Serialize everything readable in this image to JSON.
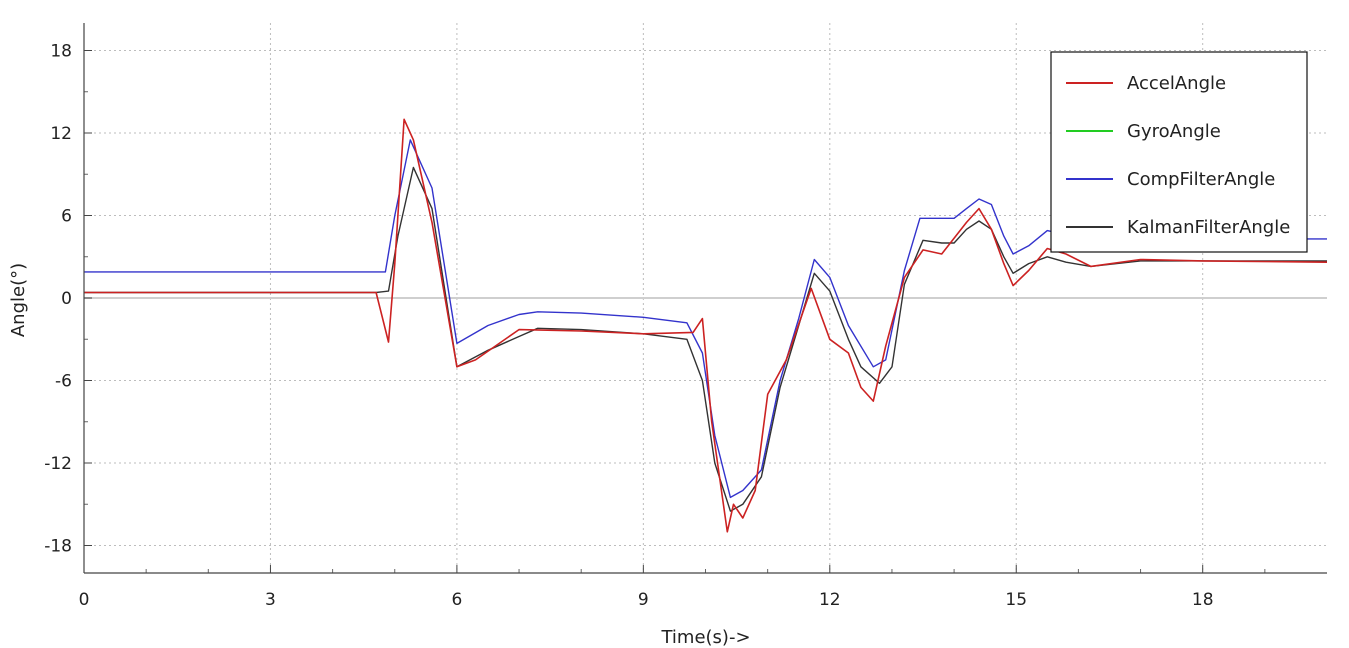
{
  "chart_data": {
    "type": "line",
    "xlabel": "Time(s)->",
    "ylabel": "Angle(°)",
    "xlim": [
      0,
      20
    ],
    "ylim": [
      -20,
      20
    ],
    "x_ticks": [
      "0",
      "3",
      "6",
      "9",
      "12",
      "15",
      "18"
    ],
    "y_ticks": [
      "18",
      "12",
      "6",
      "0",
      "-6",
      "-12",
      "-18"
    ],
    "grid": true,
    "legend_position": "top-right",
    "series": [
      {
        "name": "AccelAngle",
        "color": "#cc2222",
        "x": [
          0,
          4.7,
          4.9,
          5.0,
          5.15,
          5.3,
          5.6,
          6.0,
          6.3,
          7.0,
          8.0,
          9.0,
          9.8,
          9.95,
          10.1,
          10.35,
          10.45,
          10.6,
          10.8,
          11.0,
          11.3,
          11.7,
          12.0,
          12.3,
          12.5,
          12.7,
          12.9,
          13.2,
          13.5,
          13.8,
          14.2,
          14.4,
          14.6,
          14.8,
          14.95,
          15.2,
          15.5,
          15.8,
          16.2,
          17.0,
          18.0,
          20.0
        ],
        "y": [
          0.4,
          0.4,
          -3.2,
          2.5,
          13.0,
          11.5,
          5.5,
          -5.0,
          -4.5,
          -2.3,
          -2.4,
          -2.6,
          -2.5,
          -1.5,
          -9.0,
          -17.0,
          -15.0,
          -16.0,
          -14.0,
          -7.0,
          -4.5,
          0.7,
          -3.0,
          -4.0,
          -6.5,
          -7.5,
          -3.5,
          1.5,
          3.5,
          3.2,
          5.5,
          6.5,
          5.0,
          2.5,
          0.9,
          2.0,
          3.6,
          3.2,
          2.3,
          2.8,
          2.7,
          2.6
        ]
      },
      {
        "name": "GyroAngle",
        "color": "#22cc22",
        "x": [],
        "y": []
      },
      {
        "name": "CompFilterAngle",
        "color": "#3333cc",
        "x": [
          0,
          3.0,
          4.7,
          4.85,
          5.0,
          5.25,
          5.6,
          6.0,
          6.5,
          7.0,
          7.3,
          8.0,
          9.0,
          9.7,
          9.95,
          10.15,
          10.4,
          10.6,
          10.9,
          11.2,
          11.5,
          11.75,
          12.0,
          12.3,
          12.7,
          12.9,
          13.2,
          13.45,
          13.7,
          14.0,
          14.2,
          14.4,
          14.6,
          14.8,
          14.95,
          15.2,
          15.5,
          15.8,
          16.2,
          17.0,
          18.0,
          19.0,
          20.0
        ],
        "y": [
          1.9,
          1.9,
          1.9,
          1.9,
          6.0,
          11.5,
          8.0,
          -3.3,
          -2.0,
          -1.2,
          -1.0,
          -1.1,
          -1.4,
          -1.8,
          -4.0,
          -10.0,
          -14.5,
          -14.0,
          -12.5,
          -6.0,
          -1.5,
          2.8,
          1.5,
          -2.0,
          -5.0,
          -4.5,
          2.0,
          5.8,
          5.8,
          5.8,
          6.5,
          7.2,
          6.8,
          4.5,
          3.2,
          3.8,
          4.9,
          4.6,
          4.3,
          4.3,
          4.3,
          4.3,
          4.3
        ]
      },
      {
        "name": "KalmanFilterAngle",
        "color": "#333333",
        "x": [
          0,
          3.0,
          4.7,
          4.9,
          5.05,
          5.3,
          5.6,
          6.0,
          6.5,
          7.0,
          7.3,
          8.0,
          9.0,
          9.7,
          9.95,
          10.15,
          10.4,
          10.6,
          10.9,
          11.2,
          11.5,
          11.75,
          12.0,
          12.3,
          12.5,
          12.8,
          13.0,
          13.2,
          13.5,
          13.8,
          14.0,
          14.2,
          14.4,
          14.6,
          14.8,
          14.95,
          15.2,
          15.5,
          15.8,
          16.2,
          17.0,
          18.0,
          19.0,
          20.0
        ],
        "y": [
          0.4,
          0.4,
          0.4,
          0.5,
          4.5,
          9.5,
          6.5,
          -5.0,
          -3.8,
          -2.8,
          -2.2,
          -2.3,
          -2.6,
          -3.0,
          -6.0,
          -12.0,
          -15.5,
          -15.0,
          -13.0,
          -6.5,
          -2.0,
          1.8,
          0.5,
          -3.0,
          -5.0,
          -6.2,
          -5.0,
          1.0,
          4.2,
          4.0,
          4.0,
          5.0,
          5.6,
          5.0,
          3.0,
          1.8,
          2.5,
          3.0,
          2.6,
          2.3,
          2.7,
          2.7,
          2.7,
          2.7
        ]
      }
    ]
  }
}
